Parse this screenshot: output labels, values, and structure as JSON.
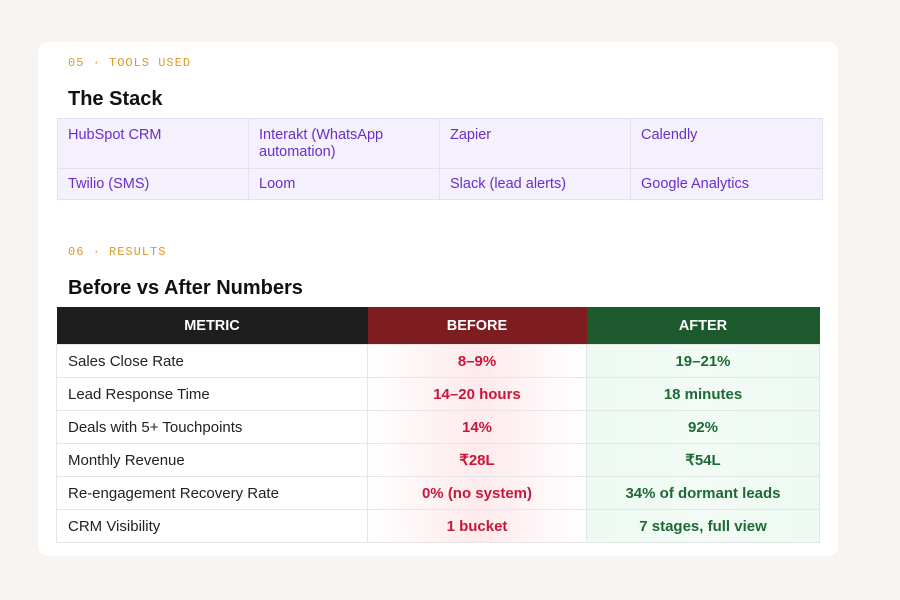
{
  "tools": {
    "section_label": "05 · TOOLS USED",
    "title": "The Stack",
    "items": [
      "HubSpot CRM",
      "Interakt (WhatsApp automation)",
      "Zapier",
      "Calendly",
      "Twilio (SMS)",
      "Loom",
      "Slack (lead alerts)",
      "Google Analytics"
    ]
  },
  "results": {
    "section_label": "06 · RESULTS",
    "title": "Before vs After Numbers",
    "table": {
      "header": [
        "METRIC",
        "BEFORE",
        "AFTER"
      ],
      "rows": [
        [
          "Sales Close Rate",
          "8–9%",
          "19–21%"
        ],
        [
          "Lead Response Time",
          "14–20 hours",
          "18 minutes"
        ],
        [
          "Deals with 5+ Touchpoints",
          "14%",
          "92%"
        ],
        [
          "Monthly Revenue",
          "₹28L",
          "₹54L"
        ],
        [
          "Re-engagement Recovery Rate",
          "0% (no system)",
          "34% of dormant leads"
        ],
        [
          "CRM Visibility",
          "1 bucket",
          "7 stages, full view"
        ]
      ]
    }
  }
}
